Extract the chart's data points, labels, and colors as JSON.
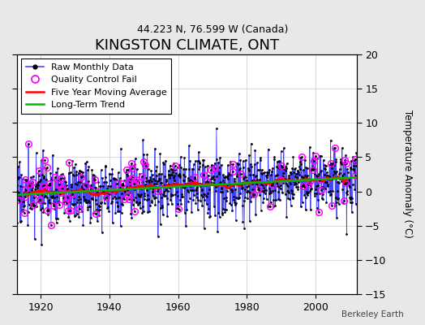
{
  "title": "KINGSTON CLIMATE, ONT",
  "subtitle": "44.223 N, 76.599 W (Canada)",
  "ylabel": "Temperature Anomaly (°C)",
  "credit": "Berkeley Earth",
  "xlim": [
    1913,
    2012
  ],
  "ylim": [
    -15,
    20
  ],
  "yticks": [
    -15,
    -10,
    -5,
    0,
    5,
    10,
    15,
    20
  ],
  "xticks": [
    1920,
    1940,
    1960,
    1980,
    2000
  ],
  "start_year": 1913,
  "end_year": 2011,
  "seed": 17,
  "raw_color": "#4444ff",
  "qc_color": "#ff00ff",
  "moving_avg_color": "#ff0000",
  "trend_color": "#00bb00",
  "plot_bg": "#ffffff",
  "fig_bg": "#e8e8e8",
  "legend_fontsize": 8,
  "title_fontsize": 13,
  "subtitle_fontsize": 9
}
